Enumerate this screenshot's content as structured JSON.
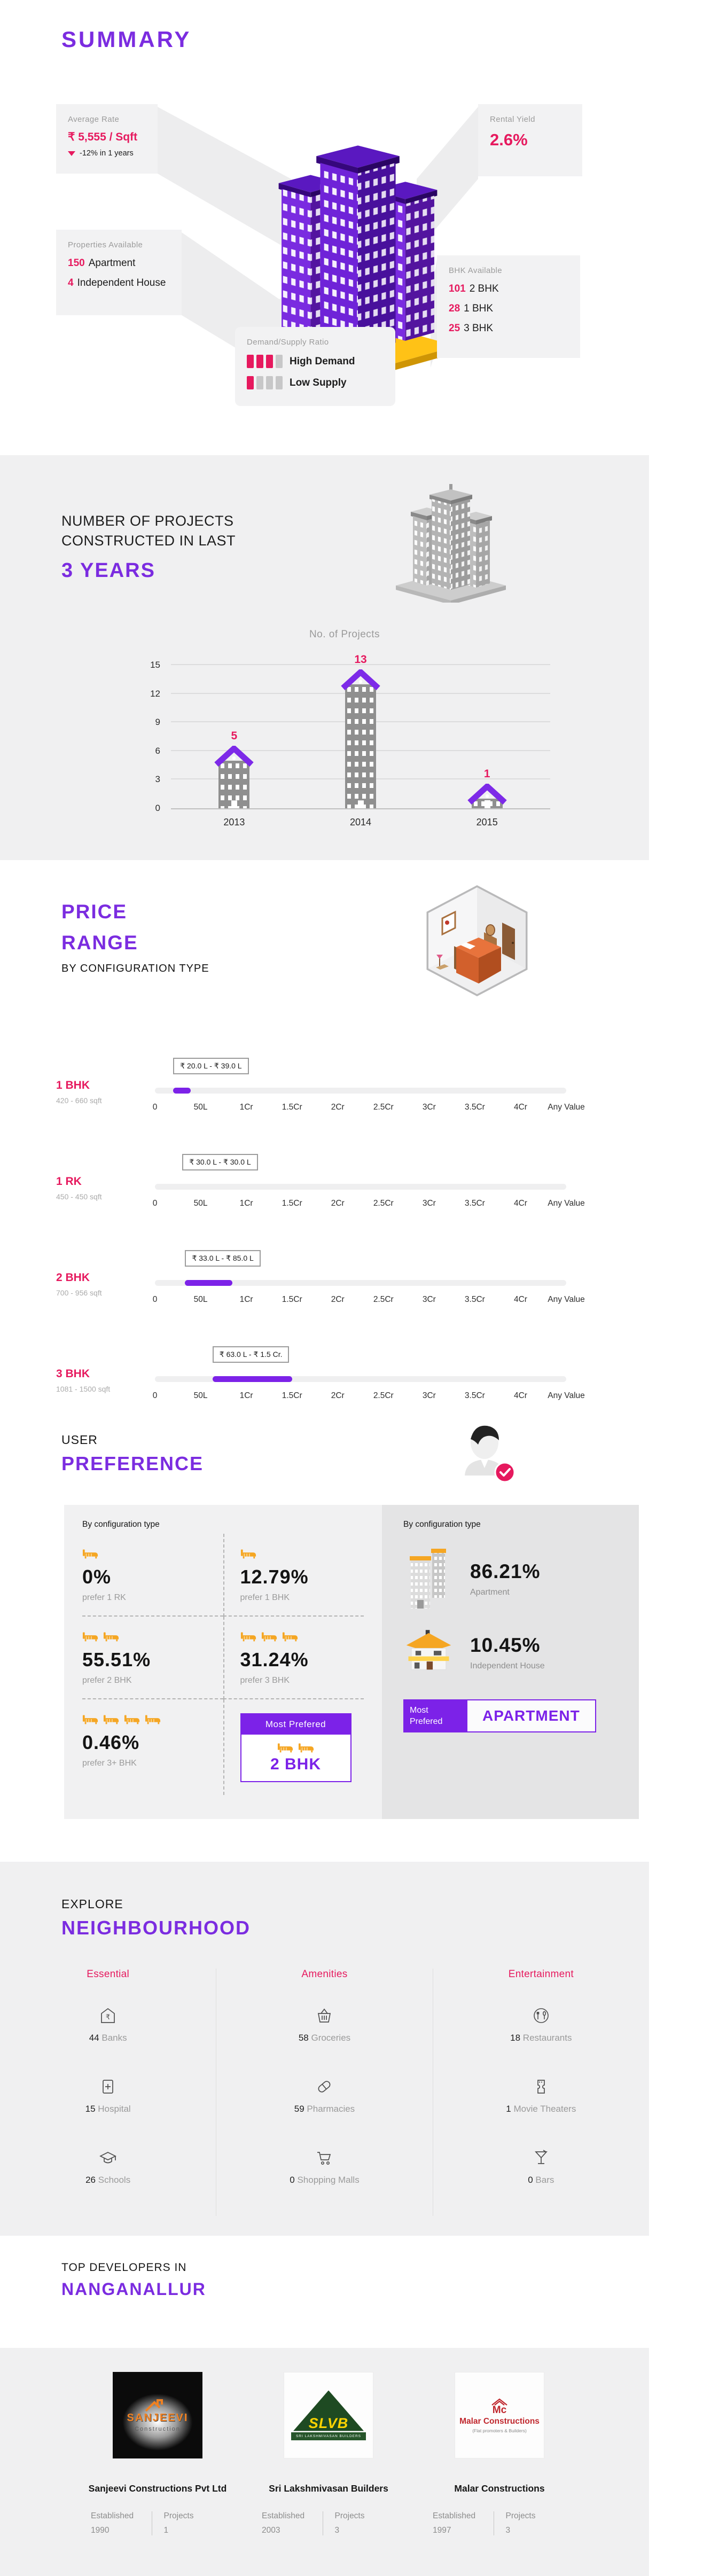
{
  "summary": {
    "title": "SUMMARY",
    "cards": {
      "average_rate": {
        "label": "Average Rate",
        "value": "₹ 5,555 / Sqft",
        "change": "-12% in 1 years"
      },
      "rental_yield": {
        "label": "Rental Yield",
        "value": "2.6%"
      },
      "properties_available": {
        "label": "Properties Available",
        "items": [
          {
            "count": "150",
            "label": "Apartment"
          },
          {
            "count": "4",
            "label": "Independent House"
          }
        ]
      },
      "bhk_available": {
        "label": "BHK Available",
        "items": [
          {
            "count": "101",
            "label": "2 BHK"
          },
          {
            "count": "28",
            "label": "1 BHK"
          },
          {
            "count": "25",
            "label": "3 BHK"
          }
        ]
      },
      "demand_supply": {
        "label": "Demand/Supply Ratio",
        "legend": [
          {
            "filled": 3,
            "total": 4,
            "label": "High Demand"
          },
          {
            "filled": 1,
            "total": 4,
            "label": "Low Supply"
          }
        ]
      }
    }
  },
  "projects": {
    "heading_line1": "NUMBER OF PROJECTS",
    "heading_line2": "CONSTRUCTED IN LAST",
    "heading_highlight": "3 YEARS"
  },
  "chart_data": {
    "type": "bar",
    "title": "No. of Projects",
    "categories": [
      "2013",
      "2014",
      "2015"
    ],
    "values": [
      5,
      13,
      1
    ],
    "xlabel": "",
    "ylabel": "",
    "ylim": [
      0,
      15
    ],
    "yticks": [
      0,
      3,
      6,
      9,
      12,
      15
    ],
    "grid": true,
    "bar_style": "building",
    "value_label_color": "#e6195e"
  },
  "price_range": {
    "heading_line1": "PRICE",
    "heading_line2": "RANGE",
    "subheading": "BY CONFIGURATION TYPE",
    "scale_ticks": [
      "0",
      "50L",
      "1Cr",
      "1.5Cr",
      "2Cr",
      "2.5Cr",
      "3Cr",
      "3.5Cr",
      "4Cr",
      "Any Value"
    ],
    "scale_max_lakh": 450,
    "rows": [
      {
        "name": "1 BHK",
        "sqft": "420 - 660 sqft",
        "tooltip": "₹ 20.0 L - ₹ 39.0 L",
        "min_lakh": 20,
        "max_lakh": 39
      },
      {
        "name": "1 RK",
        "sqft": "450 - 450 sqft",
        "tooltip": "₹ 30.0 L - ₹ 30.0 L",
        "min_lakh": 30,
        "max_lakh": 30
      },
      {
        "name": "2 BHK",
        "sqft": "700 - 956 sqft",
        "tooltip": "₹ 33.0 L - ₹ 85.0 L",
        "min_lakh": 33,
        "max_lakh": 85
      },
      {
        "name": "3 BHK",
        "sqft": "1081 - 1500 sqft",
        "tooltip": "₹ 63.0 L - ₹ 1.5 Cr.",
        "min_lakh": 63,
        "max_lakh": 150
      }
    ]
  },
  "user_preference": {
    "heading_line1": "USER",
    "heading_line2": "PREFERENCE",
    "left_panel": {
      "header": "By configuration type",
      "cells": [
        {
          "beds": 1,
          "pct": "0%",
          "label": "prefer 1 RK"
        },
        {
          "beds": 1,
          "pct": "12.79%",
          "label": "prefer 1 BHK"
        },
        {
          "beds": 2,
          "pct": "55.51%",
          "label": "prefer 2 BHK"
        },
        {
          "beds": 3,
          "pct": "31.24%",
          "label": "prefer 3 BHK"
        },
        {
          "beds": 4,
          "pct": "0.46%",
          "label": "prefer 3+ BHK"
        }
      ],
      "most_preferred": {
        "header": "Most Prefered",
        "beds": 2,
        "value": "2 BHK"
      }
    },
    "right_panel": {
      "header": "By configuration type",
      "stats": [
        {
          "icon": "apartment-building-icon",
          "pct": "86.21%",
          "label": "Apartment"
        },
        {
          "icon": "independent-house-icon",
          "pct": "10.45%",
          "label": "Independent House"
        }
      ],
      "most_preferred": {
        "label": "Most Prefered",
        "value": "APARTMENT"
      }
    }
  },
  "neighbourhood": {
    "heading_line1": "EXPLORE",
    "heading_line2": "NEIGHBOURHOOD",
    "columns": [
      {
        "title": "Essential",
        "items": [
          {
            "icon": "bank-icon",
            "count": "44",
            "label": "Banks"
          },
          {
            "icon": "hospital-icon",
            "count": "15",
            "label": "Hospital"
          },
          {
            "icon": "school-icon",
            "count": "26",
            "label": "Schools"
          }
        ]
      },
      {
        "title": "Amenities",
        "items": [
          {
            "icon": "grocery-icon",
            "count": "58",
            "label": "Groceries"
          },
          {
            "icon": "pharmacy-icon",
            "count": "59",
            "label": "Pharmacies"
          },
          {
            "icon": "shopping-mall-icon",
            "count": "0",
            "label": "Shopping Malls"
          }
        ]
      },
      {
        "title": "Entertainment",
        "items": [
          {
            "icon": "restaurant-icon",
            "count": "18",
            "label": "Restaurants"
          },
          {
            "icon": "movie-theater-icon",
            "count": "1",
            "label": "Movie Theaters"
          },
          {
            "icon": "bar-icon",
            "count": "0",
            "label": "Bars"
          }
        ]
      }
    ]
  },
  "developers": {
    "heading_line1": "TOP DEVELOPERS IN",
    "heading_line2": "NANGANALLUR",
    "cards": [
      {
        "name": "Sanjeevi Constructions Pvt Ltd",
        "established_label": "Established",
        "established": "1990",
        "projects_label": "Projects",
        "projects": "1",
        "logo": {
          "style": "dark",
          "line1": "SANJEEVI",
          "line2": "Construction"
        }
      },
      {
        "name": "Sri Lakshmivasan Builders",
        "established_label": "Established",
        "established": "2003",
        "projects_label": "Projects",
        "projects": "3",
        "logo": {
          "style": "green",
          "line1": "SLVB",
          "line2": "SRI LAKSHMIVASAN BUILDERS"
        }
      },
      {
        "name": "Malar Constructions",
        "established_label": "Established",
        "established": "1997",
        "projects_label": "Projects",
        "projects": "3",
        "logo": {
          "style": "red",
          "line1": "Mc",
          "line2": "Malar Constructions",
          "line3": "(Flat promoters & Builders)"
        }
      }
    ]
  },
  "colors": {
    "accent_purple": "#7b2ce0",
    "accent_pink": "#e6195e",
    "bed_icon_orange": "#f5a623",
    "base_yellow": "#ffc216",
    "section_grey": "#f0f0f1"
  }
}
